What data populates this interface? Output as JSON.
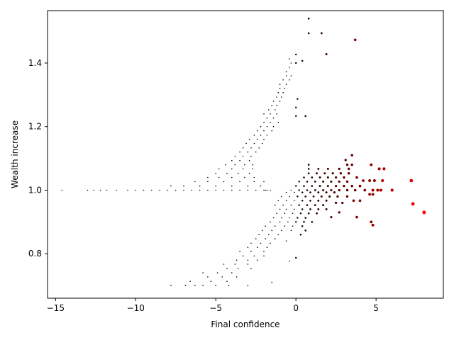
{
  "chart_data": {
    "type": "scatter",
    "title": "",
    "xlabel": "Final confidence",
    "ylabel": "Wealth increase",
    "xlim": [
      -15.5,
      9.2
    ],
    "ylim": [
      0.66,
      1.565
    ],
    "xticks": [
      -15,
      -10,
      -5,
      0,
      5
    ],
    "xtick_labels": [
      "−15",
      "−10",
      "−5",
      "0",
      "5"
    ],
    "yticks": [
      0.8,
      1.0,
      1.2,
      1.4
    ],
    "ytick_labels": [
      "0.8",
      "1.0",
      "1.2",
      "1.4"
    ],
    "grid": false,
    "legend": "none",
    "color_scale": {
      "low": "#000000",
      "high": "#ff0000",
      "x_range": [
        0,
        8
      ]
    },
    "points": [
      [
        -14.6,
        1.0
      ],
      [
        -13.0,
        1.0
      ],
      [
        -12.6,
        1.0
      ],
      [
        -12.2,
        1.0
      ],
      [
        -11.8,
        1.0
      ],
      [
        -11.2,
        1.0
      ],
      [
        -10.5,
        1.0
      ],
      [
        -10.0,
        1.0
      ],
      [
        -9.5,
        1.0
      ],
      [
        -9.0,
        1.0
      ],
      [
        -8.5,
        1.0
      ],
      [
        -8.0,
        1.0
      ],
      [
        -7.5,
        1.0
      ],
      [
        -7.0,
        1.0
      ],
      [
        -6.5,
        1.0
      ],
      [
        -6.0,
        1.0
      ],
      [
        -5.5,
        1.0
      ],
      [
        -5.0,
        1.0
      ],
      [
        -4.5,
        1.0
      ],
      [
        -4.0,
        1.0
      ],
      [
        -3.5,
        1.0
      ],
      [
        -3.0,
        1.0
      ],
      [
        -2.5,
        1.0
      ],
      [
        -2.0,
        1.0
      ],
      [
        -1.8,
        1.0
      ],
      [
        -7.8,
        1.013
      ],
      [
        -7.0,
        1.013
      ],
      [
        -6.0,
        1.013
      ],
      [
        -5.0,
        1.013
      ],
      [
        -4.0,
        1.013
      ],
      [
        -3.0,
        1.013
      ],
      [
        -2.2,
        1.013
      ],
      [
        -6.3,
        1.027
      ],
      [
        -5.5,
        1.027
      ],
      [
        -4.5,
        1.027
      ],
      [
        -3.5,
        1.027
      ],
      [
        -2.6,
        1.027
      ],
      [
        -2.0,
        1.027
      ],
      [
        -5.5,
        1.04
      ],
      [
        -4.8,
        1.04
      ],
      [
        -4.0,
        1.04
      ],
      [
        -3.2,
        1.04
      ],
      [
        -2.6,
        1.04
      ],
      [
        -5.0,
        1.053
      ],
      [
        -4.3,
        1.053
      ],
      [
        -3.6,
        1.053
      ],
      [
        -2.9,
        1.053
      ],
      [
        -4.8,
        1.067
      ],
      [
        -4.0,
        1.067
      ],
      [
        -3.3,
        1.067
      ],
      [
        -2.7,
        1.067
      ],
      [
        -4.4,
        1.08
      ],
      [
        -3.8,
        1.08
      ],
      [
        -3.2,
        1.08
      ],
      [
        -2.7,
        1.08
      ],
      [
        -4.0,
        1.093
      ],
      [
        -3.5,
        1.093
      ],
      [
        -2.9,
        1.093
      ],
      [
        -3.8,
        1.107
      ],
      [
        -3.3,
        1.107
      ],
      [
        -2.8,
        1.107
      ],
      [
        -3.5,
        1.12
      ],
      [
        -3.0,
        1.12
      ],
      [
        -2.5,
        1.12
      ],
      [
        -3.3,
        1.133
      ],
      [
        -2.8,
        1.133
      ],
      [
        -2.3,
        1.133
      ],
      [
        -3.1,
        1.147
      ],
      [
        -2.6,
        1.147
      ],
      [
        -2.1,
        1.147
      ],
      [
        -2.9,
        1.16
      ],
      [
        -2.4,
        1.16
      ],
      [
        -2.0,
        1.16
      ],
      [
        -2.6,
        1.173
      ],
      [
        -2.2,
        1.173
      ],
      [
        -1.8,
        1.173
      ],
      [
        -2.4,
        1.187
      ],
      [
        -2.0,
        1.187
      ],
      [
        -1.5,
        1.187
      ],
      [
        -2.2,
        1.2
      ],
      [
        -1.8,
        1.2
      ],
      [
        -1.4,
        1.2
      ],
      [
        -2.0,
        1.213
      ],
      [
        -1.6,
        1.213
      ],
      [
        -1.1,
        1.213
      ],
      [
        -1.8,
        1.227
      ],
      [
        -1.4,
        1.227
      ],
      [
        -2.0,
        1.24
      ],
      [
        -1.6,
        1.24
      ],
      [
        -1.2,
        1.24
      ],
      [
        -1.7,
        1.253
      ],
      [
        -1.3,
        1.253
      ],
      [
        -1.5,
        1.267
      ],
      [
        -1.2,
        1.267
      ],
      [
        -1.4,
        1.28
      ],
      [
        -1.0,
        1.28
      ],
      [
        0.1,
        1.287
      ],
      [
        -1.2,
        1.293
      ],
      [
        -0.9,
        1.293
      ],
      [
        -1.1,
        1.307
      ],
      [
        -0.8,
        1.307
      ],
      [
        -1.0,
        1.32
      ],
      [
        -0.7,
        1.32
      ],
      [
        -1.0,
        1.333
      ],
      [
        -0.6,
        1.333
      ],
      [
        -0.8,
        1.347
      ],
      [
        -0.4,
        1.347
      ],
      [
        -0.6,
        1.36
      ],
      [
        -0.3,
        1.36
      ],
      [
        -0.6,
        1.373
      ],
      [
        -0.4,
        1.387
      ],
      [
        -0.3,
        1.4
      ],
      [
        0.0,
        1.4
      ],
      [
        0.4,
        1.407
      ],
      [
        -0.4,
        1.413
      ],
      [
        0.0,
        1.427
      ],
      [
        0.8,
        1.54
      ],
      [
        0.8,
        1.494
      ],
      [
        1.6,
        1.494
      ],
      [
        3.7,
        1.473
      ],
      [
        1.9,
        1.428
      ],
      [
        0.0,
        1.26
      ],
      [
        0.0,
        1.233
      ],
      [
        0.6,
        1.233
      ],
      [
        -1.9,
        1.0
      ],
      [
        -1.6,
        1.0
      ],
      [
        -7.8,
        0.7
      ],
      [
        -6.9,
        0.7
      ],
      [
        -6.3,
        0.7
      ],
      [
        -5.8,
        0.7
      ],
      [
        -5.0,
        0.7
      ],
      [
        -4.2,
        0.7
      ],
      [
        -3.0,
        0.7
      ],
      [
        -1.5,
        0.71
      ],
      [
        -6.6,
        0.713
      ],
      [
        -5.3,
        0.713
      ],
      [
        -4.3,
        0.713
      ],
      [
        -5.5,
        0.727
      ],
      [
        -4.6,
        0.727
      ],
      [
        -3.7,
        0.727
      ],
      [
        -5.8,
        0.74
      ],
      [
        -4.9,
        0.74
      ],
      [
        -4.0,
        0.74
      ],
      [
        -4.3,
        0.753
      ],
      [
        -3.6,
        0.753
      ],
      [
        -2.8,
        0.753
      ],
      [
        -4.5,
        0.767
      ],
      [
        -3.8,
        0.767
      ],
      [
        -3.0,
        0.767
      ],
      [
        -3.7,
        0.78
      ],
      [
        -3.0,
        0.78
      ],
      [
        -2.4,
        0.78
      ],
      [
        -0.4,
        0.777
      ],
      [
        0.0,
        0.787
      ],
      [
        -3.3,
        0.793
      ],
      [
        -2.6,
        0.793
      ],
      [
        -2.0,
        0.793
      ],
      [
        -3.5,
        0.807
      ],
      [
        -2.8,
        0.807
      ],
      [
        -2.0,
        0.807
      ],
      [
        -3.0,
        0.82
      ],
      [
        -2.4,
        0.82
      ],
      [
        -1.8,
        0.82
      ],
      [
        -2.8,
        0.833
      ],
      [
        -2.2,
        0.833
      ],
      [
        -1.6,
        0.833
      ],
      [
        -2.5,
        0.847
      ],
      [
        -1.9,
        0.847
      ],
      [
        -1.3,
        0.847
      ],
      [
        -0.6,
        0.84
      ],
      [
        -2.3,
        0.86
      ],
      [
        -1.7,
        0.86
      ],
      [
        -1.1,
        0.86
      ],
      [
        0.3,
        0.86
      ],
      [
        -2.1,
        0.873
      ],
      [
        -1.5,
        0.873
      ],
      [
        -0.9,
        0.873
      ],
      [
        -0.3,
        0.873
      ],
      [
        0.6,
        0.873
      ],
      [
        -1.9,
        0.887
      ],
      [
        -1.3,
        0.887
      ],
      [
        -0.7,
        0.887
      ],
      [
        -0.2,
        0.887
      ],
      [
        0.4,
        0.887
      ],
      [
        -1.6,
        0.9
      ],
      [
        -1.0,
        0.9
      ],
      [
        -0.5,
        0.9
      ],
      [
        0.0,
        0.9
      ],
      [
        0.5,
        0.9
      ],
      [
        1.0,
        0.9
      ],
      [
        -1.4,
        0.913
      ],
      [
        -0.9,
        0.913
      ],
      [
        -0.4,
        0.913
      ],
      [
        0.1,
        0.913
      ],
      [
        0.6,
        0.913
      ],
      [
        2.2,
        0.915
      ],
      [
        -1.2,
        0.927
      ],
      [
        -0.7,
        0.927
      ],
      [
        -0.2,
        0.927
      ],
      [
        0.3,
        0.927
      ],
      [
        0.8,
        0.927
      ],
      [
        1.3,
        0.927
      ],
      [
        -1.0,
        0.94
      ],
      [
        -0.6,
        0.94
      ],
      [
        -0.1,
        0.94
      ],
      [
        0.4,
        0.94
      ],
      [
        0.9,
        0.94
      ],
      [
        1.4,
        0.94
      ],
      [
        1.9,
        0.94
      ],
      [
        -1.3,
        0.953
      ],
      [
        -0.8,
        0.953
      ],
      [
        -0.3,
        0.953
      ],
      [
        0.2,
        0.953
      ],
      [
        0.7,
        0.953
      ],
      [
        1.2,
        0.953
      ],
      [
        1.7,
        0.953
      ],
      [
        -1.1,
        0.967
      ],
      [
        -0.6,
        0.967
      ],
      [
        -0.1,
        0.967
      ],
      [
        0.4,
        0.967
      ],
      [
        0.9,
        0.967
      ],
      [
        1.4,
        0.967
      ],
      [
        1.9,
        0.967
      ],
      [
        -0.9,
        0.98
      ],
      [
        -0.4,
        0.98
      ],
      [
        0.1,
        0.98
      ],
      [
        0.6,
        0.98
      ],
      [
        1.1,
        0.98
      ],
      [
        1.6,
        0.98
      ],
      [
        2.1,
        0.98
      ],
      [
        2.6,
        0.98
      ],
      [
        -0.6,
        0.993
      ],
      [
        -0.1,
        0.993
      ],
      [
        0.4,
        0.993
      ],
      [
        0.9,
        0.993
      ],
      [
        1.4,
        0.993
      ],
      [
        1.9,
        0.993
      ],
      [
        2.4,
        0.993
      ],
      [
        -0.3,
        1.0
      ],
      [
        0.2,
        1.0
      ],
      [
        0.7,
        1.0
      ],
      [
        1.2,
        1.0
      ],
      [
        1.7,
        1.0
      ],
      [
        2.2,
        1.0
      ],
      [
        2.7,
        1.0
      ],
      [
        3.2,
        1.0
      ],
      [
        0.0,
        1.013
      ],
      [
        0.5,
        1.013
      ],
      [
        1.0,
        1.013
      ],
      [
        1.5,
        1.013
      ],
      [
        2.0,
        1.013
      ],
      [
        2.5,
        1.013
      ],
      [
        3.0,
        1.013
      ],
      [
        0.2,
        1.027
      ],
      [
        0.7,
        1.027
      ],
      [
        1.2,
        1.027
      ],
      [
        1.7,
        1.027
      ],
      [
        2.2,
        1.027
      ],
      [
        2.7,
        1.027
      ],
      [
        3.2,
        1.027
      ],
      [
        0.5,
        1.04
      ],
      [
        1.0,
        1.04
      ],
      [
        1.5,
        1.04
      ],
      [
        2.0,
        1.04
      ],
      [
        2.5,
        1.04
      ],
      [
        3.0,
        1.04
      ],
      [
        0.8,
        1.053
      ],
      [
        1.3,
        1.053
      ],
      [
        1.8,
        1.053
      ],
      [
        2.3,
        1.053
      ],
      [
        2.8,
        1.053
      ],
      [
        0.8,
        1.067
      ],
      [
        1.4,
        1.067
      ],
      [
        2.0,
        1.067
      ],
      [
        2.7,
        1.067
      ],
      [
        3.3,
        1.067
      ],
      [
        0.8,
        1.08
      ],
      [
        3.2,
        1.08
      ],
      [
        3.5,
        1.08
      ],
      [
        4.7,
        1.08
      ],
      [
        3.1,
        1.095
      ],
      [
        3.5,
        1.11
      ],
      [
        3.3,
        1.053
      ],
      [
        3.8,
        1.04
      ],
      [
        4.2,
        1.03
      ],
      [
        4.6,
        1.03
      ],
      [
        4.9,
        1.03
      ],
      [
        5.2,
        1.067
      ],
      [
        5.5,
        1.067
      ],
      [
        5.4,
        1.03
      ],
      [
        3.5,
        1.013
      ],
      [
        4.0,
        1.013
      ],
      [
        3.7,
        1.0
      ],
      [
        4.3,
        1.0
      ],
      [
        4.8,
        1.0
      ],
      [
        5.1,
        1.0
      ],
      [
        5.3,
        1.0
      ],
      [
        6.0,
        1.0
      ],
      [
        4.6,
        0.987
      ],
      [
        4.8,
        0.987
      ],
      [
        3.2,
        0.98
      ],
      [
        3.6,
        0.967
      ],
      [
        4.0,
        0.967
      ],
      [
        7.2,
        1.03
      ],
      [
        7.3,
        0.957
      ],
      [
        8.0,
        0.93
      ],
      [
        2.7,
        0.93
      ],
      [
        3.8,
        0.915
      ],
      [
        4.7,
        0.9
      ],
      [
        4.8,
        0.89
      ],
      [
        2.5,
        0.96
      ],
      [
        2.9,
        0.96
      ]
    ]
  }
}
